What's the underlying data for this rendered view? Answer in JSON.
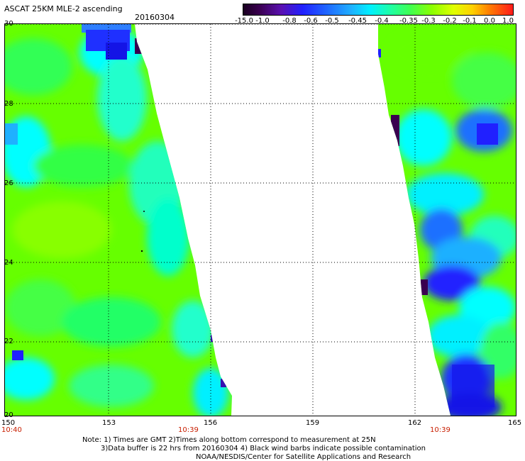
{
  "header": {
    "title": "ASCAT 25KM MLE-2 ascending",
    "date": "20160304"
  },
  "colorbar": {
    "ticks": [
      "-15.0",
      "-1.0",
      "-0.8",
      "-0.6",
      "-0.5",
      "-0.45",
      "-0.4",
      "-0.35",
      "-0.3",
      "-0.2",
      "-0.1",
      "0.0",
      "1.0"
    ],
    "colors": [
      "#3a0050",
      "#5a10b0",
      "#2020ff",
      "#1f6fff",
      "#1fb0ff",
      "#00f0ff",
      "#20ffa0",
      "#40ff50",
      "#8cff00",
      "#e0ff00",
      "#ffb000",
      "#ff5000",
      "#ff1a1a"
    ]
  },
  "map": {
    "lat_labels": [
      "30",
      "28",
      "26",
      "24",
      "22",
      "20"
    ],
    "lon_labels": [
      "150",
      "153",
      "156",
      "159",
      "162",
      "165"
    ],
    "time_labels": [
      "10:40",
      "10:39",
      "10:39"
    ]
  },
  "notes": {
    "line1": "Note: 1) Times are GMT 2)Times along bottom correspond to measurement at 25N",
    "line2": "3)Data buffer is 22 hrs from 20160304 4) Black wind barbs indicate possible contamination",
    "line3": "NOAA/NESDIS/Center for Satellite Applications and Research"
  },
  "colors": {
    "swath_base": "#6cff00",
    "swath_green": "#33ff33",
    "swath_cyan": "#00ffff",
    "swath_blue": "#2424ff",
    "swath_dark": "#3a0050",
    "grid": "#000000",
    "time_text": "#c81e00"
  }
}
